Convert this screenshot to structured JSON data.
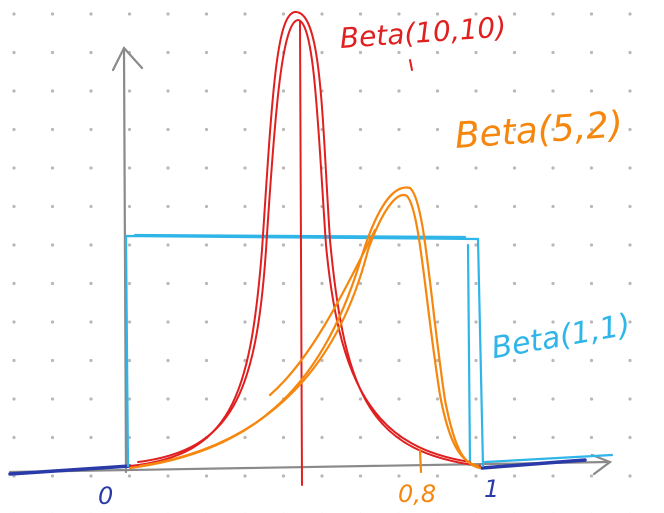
{
  "curves": {
    "beta_10_10": "Beta(10,10)",
    "beta_5_2": "Beta(5,2)",
    "beta_1_1": "Beta(1,1)"
  },
  "axis": {
    "zero": "0",
    "point_eight": "0,8",
    "one": "1"
  }
}
